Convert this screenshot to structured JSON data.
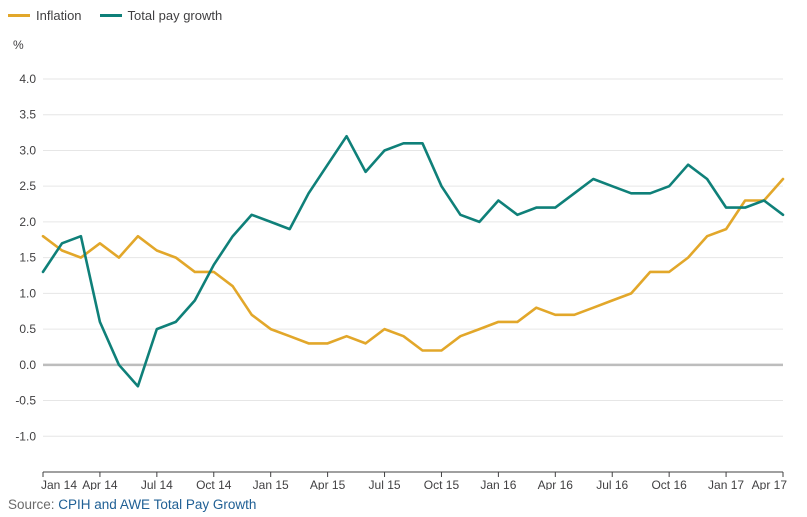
{
  "legend": {
    "items": [
      {
        "label": "Inflation",
        "color": "#e2a72a"
      },
      {
        "label": "Total pay growth",
        "color": "#0f8079"
      }
    ]
  },
  "unit_label": "%",
  "source": {
    "prefix": "Source: ",
    "link_text": "CPIH and AWE Total Pay Growth"
  },
  "chart_data": {
    "type": "line",
    "x": [
      "Jan 14",
      "Feb 14",
      "Mar 14",
      "Apr 14",
      "May 14",
      "Jun 14",
      "Jul 14",
      "Aug 14",
      "Sep 14",
      "Oct 14",
      "Nov 14",
      "Dec 14",
      "Jan 15",
      "Feb 15",
      "Mar 15",
      "Apr 15",
      "May 15",
      "Jun 15",
      "Jul 15",
      "Aug 15",
      "Sep 15",
      "Oct 15",
      "Nov 15",
      "Dec 15",
      "Jan 16",
      "Feb 16",
      "Mar 16",
      "Apr 16",
      "May 16",
      "Jun 16",
      "Jul 16",
      "Aug 16",
      "Sep 16",
      "Oct 16",
      "Nov 16",
      "Dec 16",
      "Jan 17",
      "Feb 17",
      "Mar 17",
      "Apr 17"
    ],
    "x_tick_labels": [
      "Jan 14",
      "Apr 14",
      "Jul 14",
      "Oct 14",
      "Jan 15",
      "Apr 15",
      "Jul 15",
      "Oct 15",
      "Jan 16",
      "Apr 16",
      "Jul 16",
      "Oct 16",
      "Jan 17",
      "Apr 17"
    ],
    "y_ticks": [
      "4.0",
      "3.5",
      "3.0",
      "2.5",
      "2.0",
      "1.5",
      "1.0",
      "0.5",
      "0.0",
      "-0.5",
      "-1.0"
    ],
    "ylim": [
      -1.5,
      4.0
    ],
    "grid": "horizontal",
    "legend_position": "top-left",
    "series": [
      {
        "name": "Inflation",
        "color": "#e2a72a",
        "values": [
          1.8,
          1.6,
          1.5,
          1.7,
          1.5,
          1.8,
          1.6,
          1.5,
          1.3,
          1.3,
          1.1,
          0.7,
          0.5,
          0.4,
          0.3,
          0.3,
          0.4,
          0.3,
          0.5,
          0.4,
          0.2,
          0.2,
          0.4,
          0.5,
          0.6,
          0.6,
          0.8,
          0.7,
          0.7,
          0.8,
          0.9,
          1.0,
          1.3,
          1.3,
          1.5,
          1.8,
          1.9,
          2.3,
          2.3,
          2.6
        ]
      },
      {
        "name": "Total pay growth",
        "color": "#0f8079",
        "values": [
          1.3,
          1.7,
          1.8,
          0.6,
          0.0,
          -0.3,
          0.5,
          0.6,
          0.9,
          1.4,
          1.8,
          2.1,
          2.0,
          1.9,
          2.4,
          2.8,
          3.2,
          2.7,
          3.0,
          3.1,
          3.1,
          2.5,
          2.1,
          2.0,
          2.3,
          2.1,
          2.2,
          2.2,
          2.4,
          2.6,
          2.5,
          2.4,
          2.4,
          2.5,
          2.8,
          2.6,
          2.2,
          2.2,
          2.3,
          2.1
        ]
      }
    ]
  }
}
